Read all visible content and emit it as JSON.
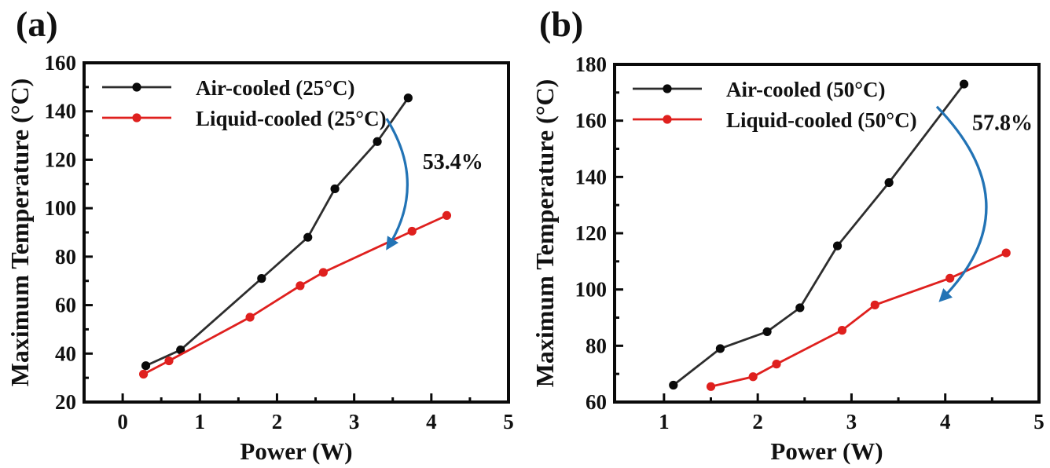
{
  "figure_title": "",
  "chart_data": [
    {
      "type": "line",
      "panel_label": "(a)",
      "xlabel": "Power (W)",
      "ylabel": "Maximum Temperature (°C)",
      "xlim": [
        -0.5,
        5
      ],
      "ylim": [
        20,
        160
      ],
      "xticks": [
        0,
        1,
        2,
        3,
        4,
        5
      ],
      "yticks": [
        20,
        40,
        60,
        80,
        100,
        120,
        140,
        160
      ],
      "x_minor_ticks": [
        0.5,
        1.5,
        2.5,
        3.5,
        4.5
      ],
      "y_minor_ticks": [
        30,
        50,
        70,
        90,
        110,
        130,
        150
      ],
      "grid": false,
      "legend_position": "top-left",
      "series": [
        {
          "name": "Air-cooled (25°C)",
          "line_color": "#2d2d2d",
          "marker_color": "#0a0a0a",
          "x": [
            0.3,
            0.75,
            1.8,
            2.4,
            2.75,
            3.3,
            3.7
          ],
          "y": [
            35,
            41.5,
            71,
            88,
            108,
            127.5,
            145.5
          ]
        },
        {
          "name": "Liquid-cooled (25°C)",
          "line_color": "#df201e",
          "marker_color": "#df201e",
          "x": [
            0.27,
            0.6,
            1.65,
            2.3,
            2.6,
            3.75,
            4.2
          ],
          "y": [
            31.5,
            37,
            55,
            68,
            73.5,
            90.5,
            97
          ]
        }
      ],
      "annotation": {
        "text": "53.4%",
        "x": 4.28,
        "y": 119.5
      },
      "arrow": {
        "color": "#2273b5",
        "from": [
          3.42,
          137
        ],
        "ctrl": [
          3.95,
          110
        ],
        "to": [
          3.44,
          84
        ]
      }
    },
    {
      "type": "line",
      "panel_label": "(b)",
      "xlabel": "Power (W)",
      "ylabel": "Maximum Temperature (°C)",
      "xlim": [
        0.473,
        5
      ],
      "ylim": [
        60,
        180
      ],
      "xticks": [
        1,
        2,
        3,
        4,
        5
      ],
      "yticks": [
        60,
        80,
        100,
        120,
        140,
        160,
        180
      ],
      "x_minor_ticks": [
        1.5,
        2.5,
        3.5,
        4.5
      ],
      "y_minor_ticks": [
        70,
        90,
        110,
        130,
        150,
        170
      ],
      "grid": false,
      "legend_position": "top-left",
      "series": [
        {
          "name": "Air-cooled (50°C)",
          "line_color": "#2d2d2d",
          "marker_color": "#0a0a0a",
          "x": [
            1.1,
            1.6,
            2.1,
            2.45,
            2.85,
            3.4,
            4.2
          ],
          "y": [
            66,
            79,
            85,
            93.5,
            115.5,
            138,
            173
          ]
        },
        {
          "name": "Liquid-cooled (50°C)",
          "line_color": "#df201e",
          "marker_color": "#df201e",
          "x": [
            1.5,
            1.95,
            2.2,
            2.9,
            3.25,
            4.05,
            4.65
          ],
          "y": [
            65.5,
            69,
            73.5,
            85.5,
            94.5,
            104,
            113
          ]
        }
      ],
      "annotation": {
        "text": "57.8%",
        "x": 4.61,
        "y": 159.5
      },
      "arrow": {
        "color": "#2273b5",
        "from": [
          3.91,
          165
        ],
        "ctrl": [
          4.94,
          129.5
        ],
        "to": [
          3.96,
          96.5
        ]
      }
    }
  ]
}
